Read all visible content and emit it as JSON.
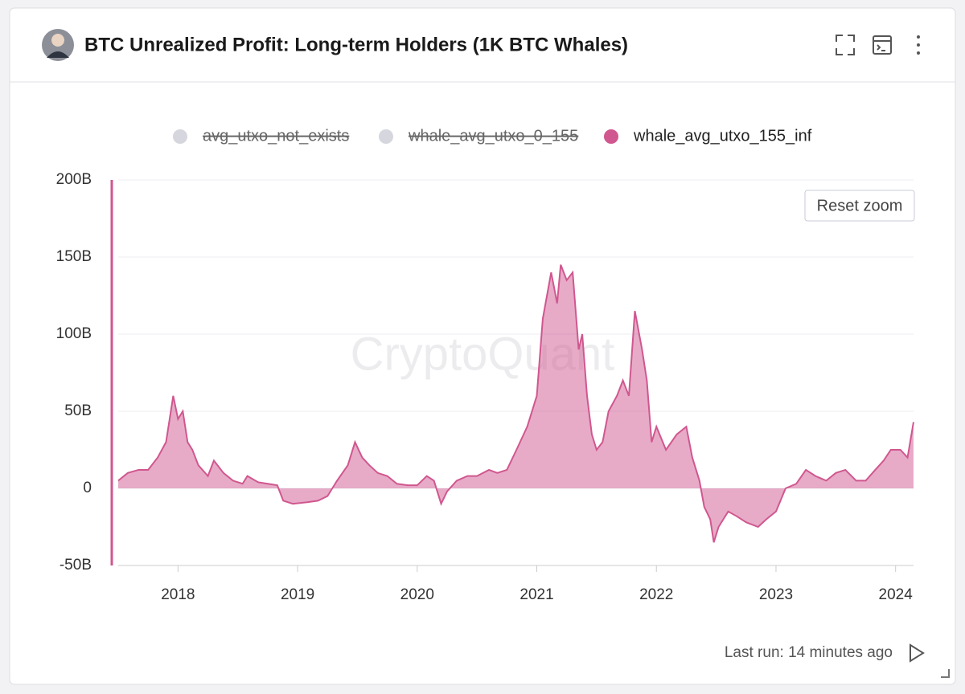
{
  "chart_data": {
    "type": "area",
    "title": "BTC Unrealized Profit: Long-term Holders (1K BTC Whales)",
    "watermark": "CryptoQuant",
    "reset_button": "Reset zoom",
    "footer": "Last run: 14 minutes ago",
    "xlim": [
      2017.5,
      2024.15
    ],
    "xticks": [
      2018,
      2019,
      2020,
      2021,
      2022,
      2023,
      2024
    ],
    "ylim": [
      -50,
      200
    ],
    "yticks": [
      {
        "value": -50,
        "label": "-50B"
      },
      0,
      {
        "value": 50,
        "label": "50B"
      },
      {
        "value": 100,
        "label": "100B"
      },
      {
        "value": 150,
        "label": "150B"
      },
      {
        "value": 200,
        "label": "200B"
      }
    ],
    "grid": true,
    "legend": "top",
    "x": [
      2017.5,
      2017.58,
      2017.67,
      2017.75,
      2017.83,
      2017.9,
      2017.96,
      2018.0,
      2018.04,
      2018.08,
      2018.12,
      2018.17,
      2018.25,
      2018.3,
      2018.38,
      2018.46,
      2018.54,
      2018.58,
      2018.67,
      2018.75,
      2018.83,
      2018.88,
      2018.96,
      2019.08,
      2019.17,
      2019.25,
      2019.33,
      2019.42,
      2019.48,
      2019.54,
      2019.6,
      2019.67,
      2019.75,
      2019.83,
      2019.92,
      2020.0,
      2020.08,
      2020.14,
      2020.2,
      2020.25,
      2020.33,
      2020.42,
      2020.5,
      2020.6,
      2020.67,
      2020.75,
      2020.83,
      2020.92,
      2021.0,
      2021.05,
      2021.12,
      2021.17,
      2021.2,
      2021.25,
      2021.3,
      2021.35,
      2021.38,
      2021.42,
      2021.46,
      2021.5,
      2021.55,
      2021.6,
      2021.67,
      2021.72,
      2021.77,
      2021.82,
      2021.88,
      2021.92,
      2021.96,
      2022.0,
      2022.08,
      2022.17,
      2022.25,
      2022.3,
      2022.36,
      2022.4,
      2022.45,
      2022.48,
      2022.52,
      2022.6,
      2022.67,
      2022.75,
      2022.85,
      2022.92,
      2023.0,
      2023.08,
      2023.17,
      2023.25,
      2023.33,
      2023.42,
      2023.5,
      2023.58,
      2023.67,
      2023.75,
      2023.83,
      2023.9,
      2023.96,
      2024.04,
      2024.1,
      2024.15
    ],
    "series": [
      {
        "name": "avg_utxo_not_exists",
        "color": "#d6d6de",
        "hidden": true
      },
      {
        "name": "whale_avg_utxo_0_155",
        "color": "#d6d6de",
        "hidden": true
      },
      {
        "name": "whale_avg_utxo_155_inf",
        "color": "#d0578f",
        "hidden": false,
        "values": [
          5,
          10,
          12,
          12,
          20,
          30,
          60,
          45,
          50,
          30,
          25,
          15,
          8,
          18,
          10,
          5,
          3,
          8,
          4,
          3,
          2,
          -8,
          -10,
          -9,
          -8,
          -5,
          5,
          15,
          30,
          20,
          15,
          10,
          8,
          3,
          2,
          2,
          8,
          5,
          -10,
          -2,
          5,
          8,
          8,
          12,
          10,
          12,
          25,
          40,
          60,
          110,
          140,
          120,
          145,
          135,
          140,
          90,
          100,
          60,
          35,
          25,
          30,
          50,
          60,
          70,
          60,
          115,
          90,
          70,
          30,
          40,
          25,
          35,
          40,
          20,
          5,
          -12,
          -20,
          -35,
          -25,
          -15,
          -18,
          -22,
          -25,
          -20,
          -15,
          0,
          3,
          12,
          8,
          5,
          10,
          12,
          5,
          5,
          12,
          18,
          25,
          25,
          20,
          43
        ]
      }
    ]
  }
}
